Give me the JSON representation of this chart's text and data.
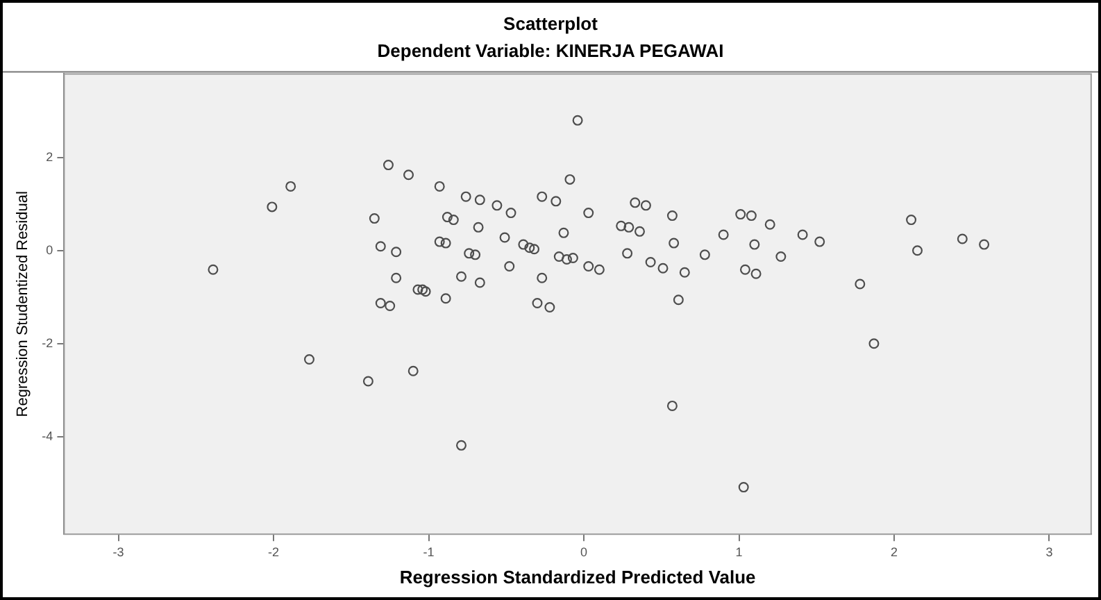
{
  "chart_data": {
    "type": "scatter",
    "title": "Scatterplot",
    "subtitle": "Dependent Variable: KINERJA PEGAWAI",
    "xlabel": "Regression Standardized Predicted Value",
    "ylabel": "Regression Studentized Residual",
    "xlim": [
      -3.35,
      3.27
    ],
    "ylim": [
      -6.1,
      3.8
    ],
    "xticks": [
      -3,
      -2,
      -1,
      0,
      1,
      2,
      3
    ],
    "yticks": [
      -4,
      -2,
      0,
      2
    ],
    "marker": "circle",
    "legend": false,
    "series": [
      {
        "color": "#4d4d4d",
        "x": [
          -0.04,
          -1.89,
          -2.01,
          -2.39,
          -1.26,
          -1.13,
          -1.35,
          -0.93,
          -0.76,
          -0.67,
          -0.56,
          -0.47,
          -0.27,
          -0.18,
          -0.09,
          -0.88,
          -0.84,
          -0.68,
          -1.31,
          -1.21,
          -0.93,
          -0.89,
          -0.74,
          -0.7,
          -0.51,
          -0.39,
          -0.35,
          -0.32,
          -0.13,
          -0.16,
          -0.11,
          -0.48,
          -0.27,
          -1.21,
          -1.04,
          -0.79,
          -0.67,
          -1.07,
          -1.02,
          -0.89,
          -1.31,
          -1.25,
          -0.3,
          -0.22,
          -1.77,
          -1.39,
          -1.1,
          -0.79,
          0.03,
          0.33,
          0.4,
          0.57,
          0.24,
          0.29,
          0.36,
          0.58,
          0.28,
          0.78,
          0.43,
          0.51,
          0.65,
          0.9,
          1.01,
          1.08,
          1.2,
          1.1,
          1.27,
          1.04,
          1.11,
          1.41,
          1.52,
          1.78,
          2.11,
          2.15,
          2.44,
          2.58,
          -0.07,
          0.03,
          0.1,
          0.61,
          1.87,
          0.57,
          1.03
        ],
        "values": [
          2.8,
          1.38,
          0.94,
          -0.41,
          1.84,
          1.63,
          0.69,
          1.38,
          1.16,
          1.09,
          0.97,
          0.81,
          1.16,
          1.06,
          1.53,
          0.72,
          0.66,
          0.5,
          0.09,
          -0.03,
          0.19,
          0.16,
          -0.06,
          -0.09,
          0.28,
          0.13,
          0.06,
          0.03,
          0.38,
          -0.13,
          -0.19,
          -0.34,
          -0.59,
          -0.59,
          -0.84,
          -0.56,
          -0.69,
          -0.84,
          -0.88,
          -1.03,
          -1.13,
          -1.19,
          -1.13,
          -1.22,
          -2.34,
          -2.81,
          -2.59,
          -4.19,
          0.81,
          1.03,
          0.97,
          0.75,
          0.53,
          0.5,
          0.41,
          0.16,
          -0.06,
          -0.09,
          -0.25,
          -0.38,
          -0.47,
          0.34,
          0.78,
          0.75,
          0.56,
          0.13,
          -0.13,
          -0.41,
          -0.5,
          0.34,
          0.19,
          -0.72,
          0.66,
          0,
          0.25,
          0.13,
          -0.16,
          -0.34,
          -0.41,
          -1.06,
          -2.0,
          -3.34,
          -5.09
        ]
      }
    ]
  }
}
